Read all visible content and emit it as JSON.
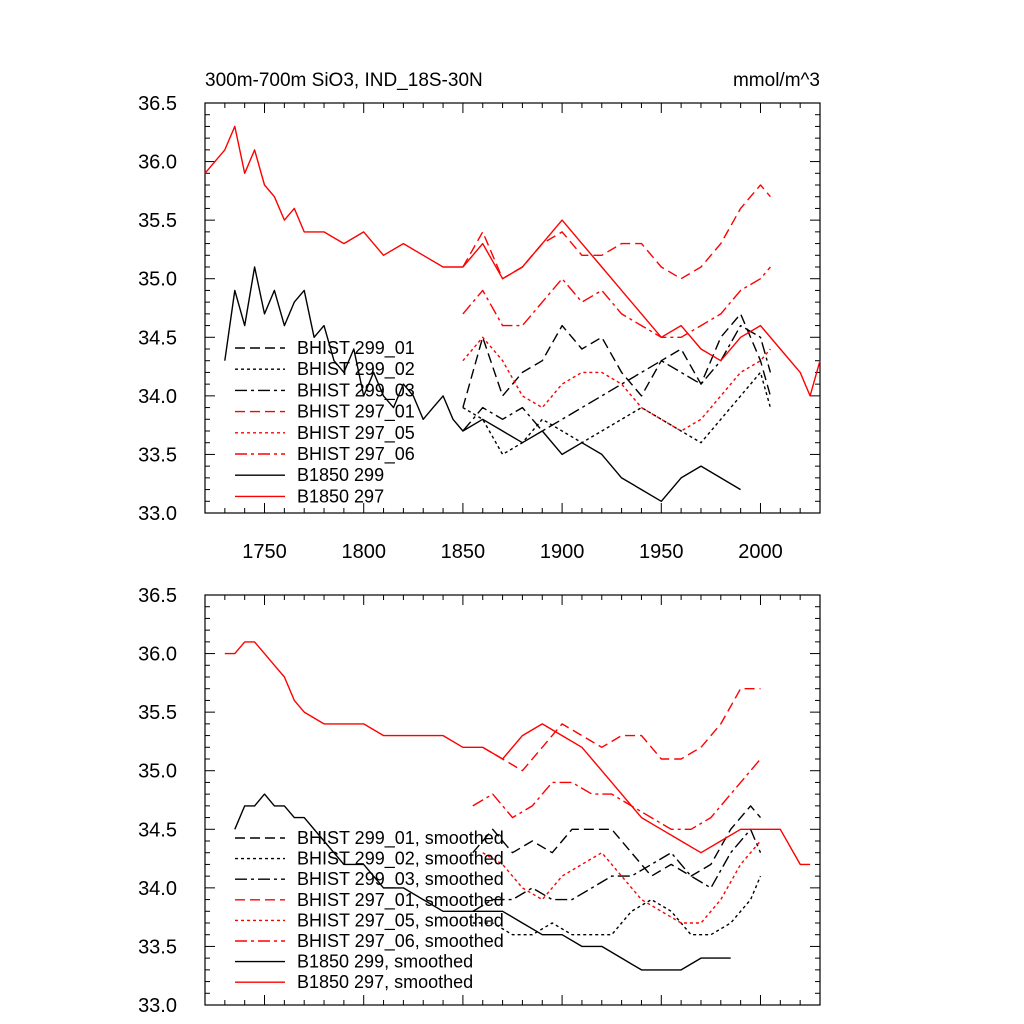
{
  "chart_data": [
    {
      "type": "line",
      "title": "300m-700m SiO3, IND_18S-30N",
      "units": "mmol/m^3",
      "xlim": [
        1720,
        2030
      ],
      "ylim": [
        33.0,
        36.5
      ],
      "x_ticks": [
        "1750",
        "1800",
        "1850",
        "1900",
        "1950",
        "2000"
      ],
      "y_ticks": [
        "33.0",
        "33.5",
        "34.0",
        "34.5",
        "35.0",
        "35.5",
        "36.0",
        "36.5"
      ],
      "legend": [
        "BHIST 299_01",
        "BHIST 299_02",
        "BHIST 299_03",
        "BHIST 297_01",
        "BHIST 297_05",
        "BHIST 297_06",
        "B1850 299",
        "B1850 297"
      ],
      "series": [
        {
          "name": "BHIST 299_01",
          "color": "#000000",
          "dash": "10,5",
          "x": [
            1850,
            1860,
            1870,
            1880,
            1890,
            1900,
            1910,
            1920,
            1930,
            1940,
            1950,
            1960,
            1970,
            1980,
            1990,
            2000,
            2005
          ],
          "y": [
            33.9,
            34.5,
            34.0,
            34.2,
            34.3,
            34.6,
            34.4,
            34.5,
            34.2,
            34.0,
            34.3,
            34.4,
            34.1,
            34.5,
            34.7,
            34.3,
            34.0
          ]
        },
        {
          "name": "BHIST 299_02",
          "color": "#000000",
          "dash": "3,3",
          "x": [
            1850,
            1860,
            1870,
            1880,
            1890,
            1900,
            1910,
            1920,
            1930,
            1940,
            1950,
            1960,
            1970,
            1980,
            1990,
            2000,
            2005
          ],
          "y": [
            33.9,
            33.8,
            33.5,
            33.6,
            33.8,
            33.7,
            33.6,
            33.7,
            33.8,
            33.9,
            33.8,
            33.7,
            33.6,
            33.8,
            34.0,
            34.2,
            33.9
          ]
        },
        {
          "name": "BHIST 299_03",
          "color": "#000000",
          "dash": "12,4,3,4",
          "x": [
            1850,
            1860,
            1870,
            1880,
            1890,
            1900,
            1910,
            1920,
            1930,
            1940,
            1950,
            1960,
            1970,
            1980,
            1990,
            2000,
            2005
          ],
          "y": [
            33.7,
            33.9,
            33.8,
            33.9,
            33.7,
            33.8,
            33.9,
            34.0,
            34.1,
            34.2,
            34.3,
            34.2,
            34.1,
            34.3,
            34.6,
            34.5,
            34.2
          ]
        },
        {
          "name": "BHIST 297_01",
          "color": "#ff0000",
          "dash": "10,5",
          "x": [
            1850,
            1860,
            1870,
            1880,
            1890,
            1900,
            1910,
            1920,
            1930,
            1940,
            1950,
            1960,
            1970,
            1980,
            1990,
            2000,
            2005
          ],
          "y": [
            35.1,
            35.4,
            35.0,
            35.1,
            35.3,
            35.4,
            35.2,
            35.2,
            35.3,
            35.3,
            35.1,
            35.0,
            35.1,
            35.3,
            35.6,
            35.8,
            35.7
          ]
        },
        {
          "name": "BHIST 297_05",
          "color": "#ff0000",
          "dash": "3,3",
          "x": [
            1850,
            1860,
            1870,
            1880,
            1890,
            1900,
            1910,
            1920,
            1930,
            1940,
            1950,
            1960,
            1970,
            1980,
            1990,
            2000,
            2005
          ],
          "y": [
            34.3,
            34.5,
            34.3,
            34.0,
            33.9,
            34.1,
            34.2,
            34.2,
            34.1,
            33.9,
            33.8,
            33.7,
            33.8,
            34.0,
            34.2,
            34.3,
            34.4
          ]
        },
        {
          "name": "BHIST 297_06",
          "color": "#ff0000",
          "dash": "12,4,3,4",
          "x": [
            1850,
            1860,
            1870,
            1880,
            1890,
            1900,
            1910,
            1920,
            1930,
            1940,
            1950,
            1960,
            1970,
            1980,
            1990,
            2000,
            2005
          ],
          "y": [
            34.7,
            34.9,
            34.6,
            34.6,
            34.8,
            35.0,
            34.8,
            34.9,
            34.7,
            34.6,
            34.5,
            34.5,
            34.6,
            34.7,
            34.9,
            35.0,
            35.1
          ]
        },
        {
          "name": "B1850 299",
          "color": "#000000",
          "dash": "",
          "x": [
            1730,
            1735,
            1740,
            1745,
            1750,
            1755,
            1760,
            1765,
            1770,
            1775,
            1780,
            1785,
            1790,
            1795,
            1800,
            1805,
            1810,
            1815,
            1820,
            1825,
            1830,
            1835,
            1840,
            1845,
            1850,
            1860,
            1870,
            1880,
            1890,
            1900,
            1910,
            1920,
            1930,
            1940,
            1950,
            1960,
            1970,
            1980,
            1990
          ],
          "y": [
            34.3,
            34.9,
            34.6,
            35.1,
            34.7,
            34.9,
            34.6,
            34.8,
            34.9,
            34.5,
            34.6,
            34.3,
            34.2,
            34.4,
            34.0,
            34.2,
            34.0,
            33.9,
            34.1,
            34.0,
            33.8,
            33.9,
            34.0,
            33.8,
            33.7,
            33.8,
            33.7,
            33.6,
            33.7,
            33.5,
            33.6,
            33.5,
            33.3,
            33.2,
            33.1,
            33.3,
            33.4,
            33.3,
            33.2
          ]
        },
        {
          "name": "B1850 297",
          "color": "#ff0000",
          "dash": "",
          "x": [
            1720,
            1725,
            1730,
            1735,
            1740,
            1745,
            1750,
            1755,
            1760,
            1765,
            1770,
            1780,
            1790,
            1800,
            1810,
            1820,
            1830,
            1840,
            1850,
            1860,
            1870,
            1880,
            1890,
            1900,
            1910,
            1920,
            1930,
            1940,
            1950,
            1960,
            1970,
            1980,
            1990,
            2000,
            2010,
            2020,
            2025,
            2030
          ],
          "y": [
            35.9,
            36.0,
            36.1,
            36.3,
            35.9,
            36.1,
            35.8,
            35.7,
            35.5,
            35.6,
            35.4,
            35.4,
            35.3,
            35.4,
            35.2,
            35.3,
            35.2,
            35.1,
            35.1,
            35.3,
            35.0,
            35.1,
            35.3,
            35.5,
            35.3,
            35.1,
            34.9,
            34.7,
            34.5,
            34.6,
            34.4,
            34.3,
            34.5,
            34.6,
            34.4,
            34.2,
            34.0,
            34.3
          ]
        }
      ]
    },
    {
      "type": "line",
      "title": "",
      "xlim": [
        1720,
        2030
      ],
      "ylim": [
        33.0,
        36.5
      ],
      "y_ticks": [
        "33.0",
        "33.5",
        "34.0",
        "34.5",
        "35.0",
        "35.5",
        "36.0",
        "36.5"
      ],
      "legend": [
        "BHIST 299_01, smoothed",
        "BHIST 299_02, smoothed",
        "BHIST 299_03, smoothed",
        "BHIST 297_01, smoothed",
        "BHIST 297_05, smoothed",
        "BHIST 297_06, smoothed",
        "B1850 299, smoothed",
        "B1850 297, smoothed"
      ],
      "series": [
        {
          "name": "BHIST 299_01, smoothed",
          "color": "#000000",
          "dash": "10,5",
          "x": [
            1855,
            1865,
            1875,
            1885,
            1895,
            1905,
            1915,
            1925,
            1935,
            1945,
            1955,
            1965,
            1975,
            1985,
            1995,
            2000
          ],
          "y": [
            34.3,
            34.5,
            34.3,
            34.4,
            34.3,
            34.5,
            34.5,
            34.5,
            34.3,
            34.1,
            34.2,
            34.1,
            34.2,
            34.5,
            34.7,
            34.6
          ]
        },
        {
          "name": "BHIST 299_02, smoothed",
          "color": "#000000",
          "dash": "3,3",
          "x": [
            1855,
            1865,
            1875,
            1885,
            1895,
            1905,
            1915,
            1925,
            1935,
            1945,
            1955,
            1965,
            1975,
            1985,
            1995,
            2000
          ],
          "y": [
            33.7,
            33.7,
            33.6,
            33.6,
            33.7,
            33.6,
            33.6,
            33.6,
            33.8,
            33.9,
            33.8,
            33.6,
            33.6,
            33.7,
            33.9,
            34.1
          ]
        },
        {
          "name": "BHIST 299_03, smoothed",
          "color": "#000000",
          "dash": "12,4,3,4",
          "x": [
            1855,
            1865,
            1875,
            1885,
            1895,
            1905,
            1915,
            1925,
            1935,
            1945,
            1955,
            1965,
            1975,
            1985,
            1995,
            2000
          ],
          "y": [
            33.8,
            33.9,
            33.9,
            34.0,
            33.9,
            33.9,
            34.0,
            34.1,
            34.1,
            34.2,
            34.3,
            34.1,
            34.0,
            34.3,
            34.5,
            34.3
          ]
        },
        {
          "name": "BHIST 297_01, smoothed",
          "color": "#ff0000",
          "dash": "10,5",
          "x": [
            1860,
            1870,
            1880,
            1890,
            1900,
            1910,
            1920,
            1930,
            1940,
            1950,
            1960,
            1970,
            1980,
            1990,
            2000
          ],
          "y": [
            35.2,
            35.1,
            35.0,
            35.2,
            35.4,
            35.3,
            35.2,
            35.3,
            35.3,
            35.1,
            35.1,
            35.2,
            35.4,
            35.7,
            35.7
          ]
        },
        {
          "name": "BHIST 297_05, smoothed",
          "color": "#ff0000",
          "dash": "3,3",
          "x": [
            1860,
            1870,
            1880,
            1890,
            1900,
            1910,
            1920,
            1930,
            1940,
            1950,
            1960,
            1970,
            1980,
            1990,
            2000
          ],
          "y": [
            34.3,
            34.2,
            34.0,
            33.9,
            34.1,
            34.2,
            34.3,
            34.1,
            33.9,
            33.8,
            33.7,
            33.7,
            33.9,
            34.2,
            34.4
          ]
        },
        {
          "name": "BHIST 297_06, smoothed",
          "color": "#ff0000",
          "dash": "12,4,3,4",
          "x": [
            1855,
            1865,
            1875,
            1885,
            1895,
            1905,
            1915,
            1925,
            1935,
            1945,
            1955,
            1965,
            1975,
            1985,
            1995,
            2000
          ],
          "y": [
            34.7,
            34.8,
            34.6,
            34.7,
            34.9,
            34.9,
            34.8,
            34.8,
            34.7,
            34.6,
            34.5,
            34.5,
            34.6,
            34.8,
            35.0,
            35.1
          ]
        },
        {
          "name": "B1850 299, smoothed",
          "color": "#000000",
          "dash": "",
          "x": [
            1735,
            1740,
            1745,
            1750,
            1755,
            1760,
            1765,
            1770,
            1780,
            1790,
            1800,
            1810,
            1820,
            1830,
            1840,
            1850,
            1860,
            1870,
            1880,
            1890,
            1900,
            1910,
            1920,
            1930,
            1940,
            1950,
            1960,
            1970,
            1980,
            1985
          ],
          "y": [
            34.5,
            34.7,
            34.7,
            34.8,
            34.7,
            34.7,
            34.6,
            34.6,
            34.4,
            34.2,
            34.2,
            34.0,
            34.0,
            33.9,
            33.8,
            33.8,
            33.8,
            33.8,
            33.7,
            33.6,
            33.6,
            33.5,
            33.5,
            33.4,
            33.3,
            33.3,
            33.3,
            33.4,
            33.4,
            33.4
          ]
        },
        {
          "name": "B1850 297, smoothed",
          "color": "#ff0000",
          "dash": "",
          "x": [
            1730,
            1735,
            1740,
            1745,
            1750,
            1755,
            1760,
            1765,
            1770,
            1780,
            1790,
            1800,
            1810,
            1820,
            1830,
            1840,
            1850,
            1860,
            1870,
            1880,
            1890,
            1900,
            1910,
            1920,
            1930,
            1940,
            1950,
            1960,
            1970,
            1980,
            1990,
            2000,
            2010,
            2020,
            2025
          ],
          "y": [
            36.0,
            36.0,
            36.1,
            36.1,
            36.0,
            35.9,
            35.8,
            35.6,
            35.5,
            35.4,
            35.4,
            35.4,
            35.3,
            35.3,
            35.3,
            35.3,
            35.2,
            35.2,
            35.1,
            35.3,
            35.4,
            35.3,
            35.2,
            35.0,
            34.8,
            34.6,
            34.5,
            34.4,
            34.3,
            34.4,
            34.5,
            34.5,
            34.5,
            34.2,
            34.2
          ]
        }
      ]
    }
  ]
}
